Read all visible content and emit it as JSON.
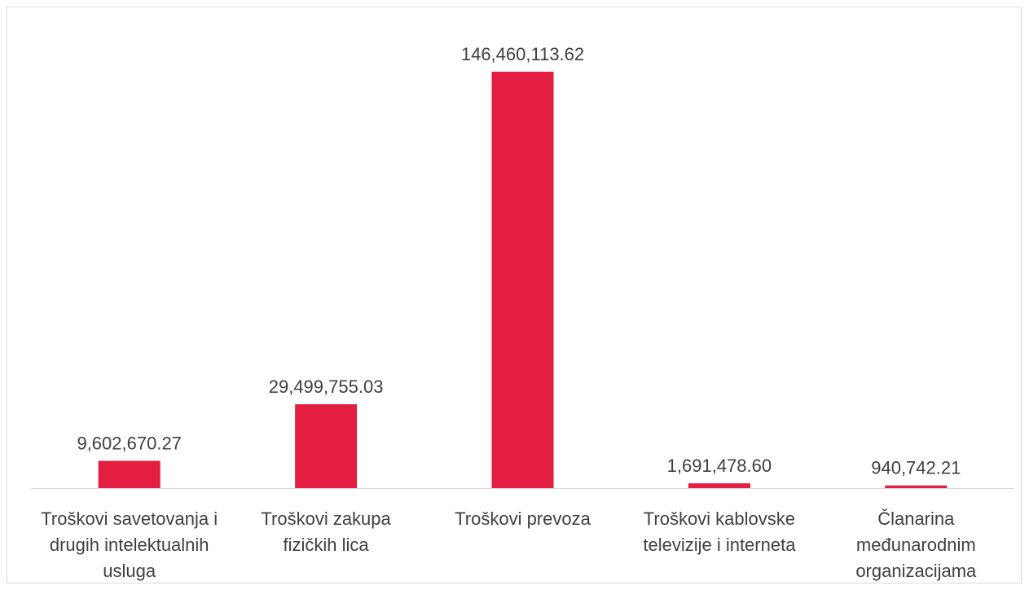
{
  "chart_data": {
    "type": "bar",
    "title": "",
    "xlabel": "",
    "ylabel": "",
    "categories": [
      "Troškovi savetovanja i drugih intelektualnih usluga",
      "Troškovi zakupa fizičkih lica",
      "Troškovi prevoza",
      "Troškovi kablovske televizije i interneta",
      "Članarina međunarodnim organizacijama"
    ],
    "category_lines": [
      [
        "Troškovi savetovanja i",
        "drugih intelektualnih",
        "usluga"
      ],
      [
        "Troškovi zakupa",
        "fizičkih lica"
      ],
      [
        "Troškovi prevoza"
      ],
      [
        "Troškovi kablovske",
        "televizije i interneta"
      ],
      [
        "Članarina",
        "međunarodnim",
        "organizacijama"
      ]
    ],
    "values": [
      9602670.27,
      29499755.03,
      146460113.62,
      1691478.6,
      940742.21
    ],
    "data_labels": [
      "9,602,670.27",
      "29,499,755.03",
      "146,460,113.62",
      "1,691,478.60",
      "940,742.21"
    ],
    "bar_color": "#e31e40",
    "axis_color": "#d9d9d9",
    "text_color": "#404040",
    "grid": false,
    "legend": "none"
  }
}
